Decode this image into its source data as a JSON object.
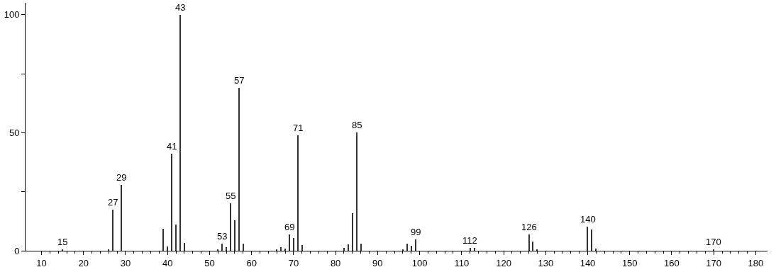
{
  "chart_data": {
    "type": "bar",
    "color": "#333333",
    "x": [
      15,
      26,
      27,
      29,
      39,
      40,
      41,
      42,
      43,
      44,
      52,
      53,
      54,
      55,
      56,
      57,
      58,
      66,
      67,
      68,
      69,
      70,
      71,
      72,
      82,
      83,
      84,
      85,
      86,
      96,
      97,
      98,
      99,
      112,
      113,
      126,
      127,
      128,
      140,
      141,
      142,
      170
    ],
    "values": [
      0.6,
      0.5,
      17.3,
      28,
      9.4,
      1.8,
      41,
      11,
      100,
      3.2,
      0.6,
      3,
      1.5,
      20,
      13,
      69,
      3,
      0.5,
      1.5,
      0.8,
      7,
      5.5,
      49,
      2.4,
      1.2,
      2.7,
      16,
      50,
      3,
      0.5,
      3,
      2,
      4.7,
      1.2,
      1.2,
      7,
      3.8,
      0.5,
      10.3,
      9,
      0.8,
      0.5
    ],
    "xlim": [
      6.2,
      182.8
    ],
    "ylim": [
      0,
      105
    ],
    "xticks": [
      10,
      {
        "value": 12,
        "label": null
      },
      {
        "value": 14,
        "label": null
      },
      {
        "value": 16,
        "label": null
      },
      {
        "value": 18,
        "label": null
      },
      20,
      {
        "value": 22,
        "label": null
      },
      {
        "value": 24,
        "label": null
      },
      {
        "value": 26,
        "label": null
      },
      {
        "value": 28,
        "label": null
      },
      30,
      {
        "value": 32,
        "label": null
      },
      {
        "value": 34,
        "label": null
      },
      {
        "value": 36,
        "label": null
      },
      {
        "value": 38,
        "label": null
      },
      40,
      {
        "value": 42,
        "label": null
      },
      {
        "value": 44,
        "label": null
      },
      {
        "value": 46,
        "label": null
      },
      {
        "value": 48,
        "label": null
      },
      50,
      {
        "value": 52,
        "label": null
      },
      {
        "value": 54,
        "label": null
      },
      {
        "value": 56,
        "label": null
      },
      {
        "value": 58,
        "label": null
      },
      60,
      {
        "value": 62,
        "label": null
      },
      {
        "value": 64,
        "label": null
      },
      {
        "value": 66,
        "label": null
      },
      {
        "value": 68,
        "label": null
      },
      70,
      {
        "value": 72,
        "label": null
      },
      {
        "value": 74,
        "label": null
      },
      {
        "value": 76,
        "label": null
      },
      {
        "value": 78,
        "label": null
      },
      80,
      {
        "value": 82,
        "label": null
      },
      {
        "value": 84,
        "label": null
      },
      {
        "value": 86,
        "label": null
      },
      {
        "value": 88,
        "label": null
      },
      90,
      {
        "value": 92,
        "label": null
      },
      {
        "value": 94,
        "label": null
      },
      {
        "value": 96,
        "label": null
      },
      {
        "value": 98,
        "label": null
      },
      100,
      {
        "value": 102,
        "label": null
      },
      {
        "value": 104,
        "label": null
      },
      {
        "value": 106,
        "label": null
      },
      {
        "value": 108,
        "label": null
      },
      110,
      {
        "value": 112,
        "label": null
      },
      {
        "value": 114,
        "label": null
      },
      {
        "value": 116,
        "label": null
      },
      {
        "value": 118,
        "label": null
      },
      120,
      {
        "value": 122,
        "label": null
      },
      {
        "value": 124,
        "label": null
      },
      {
        "value": 126,
        "label": null
      },
      {
        "value": 128,
        "label": null
      },
      130,
      {
        "value": 132,
        "label": null
      },
      {
        "value": 134,
        "label": null
      },
      {
        "value": 136,
        "label": null
      },
      {
        "value": 138,
        "label": null
      },
      140,
      {
        "value": 142,
        "label": null
      },
      {
        "value": 144,
        "label": null
      },
      {
        "value": 146,
        "label": null
      },
      {
        "value": 148,
        "label": null
      },
      150,
      {
        "value": 152,
        "label": null
      },
      {
        "value": 154,
        "label": null
      },
      {
        "value": 156,
        "label": null
      },
      {
        "value": 158,
        "label": null
      },
      160,
      {
        "value": 162,
        "label": null
      },
      {
        "value": 164,
        "label": null
      },
      {
        "value": 166,
        "label": null
      },
      {
        "value": 168,
        "label": null
      },
      170,
      {
        "value": 172,
        "label": null
      },
      {
        "value": 174,
        "label": null
      },
      {
        "value": 176,
        "label": null
      },
      {
        "value": 178,
        "label": null
      },
      180
    ],
    "yticks": [
      0,
      {
        "value": 25,
        "label": null
      },
      50,
      {
        "value": 75,
        "label": null
      },
      100
    ],
    "annotations": [
      {
        "text": "15",
        "x": 15,
        "y": 0.6
      },
      {
        "text": "27",
        "x": 27,
        "y": 17.3
      },
      {
        "text": "29",
        "x": 29,
        "y": 28
      },
      {
        "text": "41",
        "x": 41,
        "y": 41
      },
      {
        "text": "43",
        "x": 43,
        "y": 100
      },
      {
        "text": "53",
        "x": 53,
        "y": 3
      },
      {
        "text": "55",
        "x": 55,
        "y": 20
      },
      {
        "text": "57",
        "x": 57,
        "y": 69
      },
      {
        "text": "69",
        "x": 69,
        "y": 7
      },
      {
        "text": "71",
        "x": 71,
        "y": 49
      },
      {
        "text": "85",
        "x": 85,
        "y": 50
      },
      {
        "text": "99",
        "x": 99,
        "y": 4.7
      },
      {
        "text": "112",
        "x": 112,
        "y": 1.2
      },
      {
        "text": "126",
        "x": 126,
        "y": 7
      },
      {
        "text": "140",
        "x": 140,
        "y": 10.3
      },
      {
        "text": "170",
        "x": 170,
        "y": 0.5
      }
    ]
  }
}
